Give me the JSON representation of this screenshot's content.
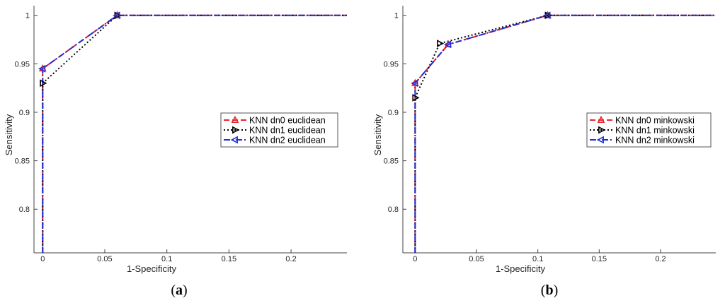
{
  "chart_data": [
    {
      "type": "line",
      "caption_letter": "a",
      "xlabel": "1-Specificity",
      "ylabel": "Sensitivity",
      "xlim": [
        -0.007,
        0.245
      ],
      "ylim": [
        0.755,
        1.01
      ],
      "xticks": [
        0,
        0.05,
        0.1,
        0.15,
        0.2
      ],
      "xtick_labels": [
        "0",
        "0.05",
        "0.1",
        "0.15",
        "0.2"
      ],
      "yticks": [
        0.8,
        0.85,
        0.9,
        0.95,
        1
      ],
      "ytick_labels": [
        "0.8",
        "0.85",
        "0.9",
        "0.95",
        "1"
      ],
      "grid": false,
      "legend_position": "right",
      "series": [
        {
          "name": "KNN dn0 euclidean",
          "color": "#e8262d",
          "marker": "triangle-up",
          "dash": "dashed",
          "x": [
            0,
            0,
            0.06,
            0.245
          ],
          "y": [
            0.755,
            0.945,
            1,
            1
          ]
        },
        {
          "name": "KNN dn1 euclidean",
          "color": "#000000",
          "marker": "triangle-right",
          "dash": "dotted",
          "x": [
            0,
            0,
            0.06,
            0.245
          ],
          "y": [
            0.755,
            0.93,
            1,
            1
          ]
        },
        {
          "name": "KNN dn2 euclidean",
          "color": "#1f2fd6",
          "marker": "triangle-left",
          "dash": "dashdot",
          "x": [
            0,
            0,
            0.06,
            0.245
          ],
          "y": [
            0.755,
            0.945,
            1,
            1
          ]
        }
      ]
    },
    {
      "type": "line",
      "caption_letter": "b",
      "xlabel": "1-Specificity",
      "ylabel": "Sensitivity",
      "xlim": [
        -0.01,
        0.245
      ],
      "ylim": [
        0.755,
        1.01
      ],
      "xticks": [
        0,
        0.05,
        0.1,
        0.15,
        0.2
      ],
      "xtick_labels": [
        "0",
        "0.05",
        "0.1",
        "0.15",
        "0.2"
      ],
      "yticks": [
        0.8,
        0.85,
        0.9,
        0.95,
        1
      ],
      "ytick_labels": [
        "0.8",
        "0.85",
        "0.9",
        "0.95",
        "1"
      ],
      "grid": false,
      "legend_position": "right",
      "series": [
        {
          "name": "KNN dn0 minkowski",
          "color": "#e8262d",
          "marker": "triangle-up",
          "dash": "dashed",
          "x": [
            0,
            0,
            0.027,
            0.108,
            0.245
          ],
          "y": [
            0.755,
            0.93,
            0.97,
            1,
            1
          ]
        },
        {
          "name": "KNN dn1 minkowski",
          "color": "#000000",
          "marker": "triangle-right",
          "dash": "dotted",
          "x": [
            0,
            0,
            0.02,
            0.108,
            0.245
          ],
          "y": [
            0.755,
            0.915,
            0.971,
            1,
            1
          ]
        },
        {
          "name": "KNN dn2 minkowski",
          "color": "#1f2fd6",
          "marker": "triangle-left",
          "dash": "dashdot",
          "x": [
            0,
            0,
            0.027,
            0.108,
            0.245
          ],
          "y": [
            0.755,
            0.93,
            0.97,
            1,
            1
          ]
        }
      ]
    }
  ]
}
